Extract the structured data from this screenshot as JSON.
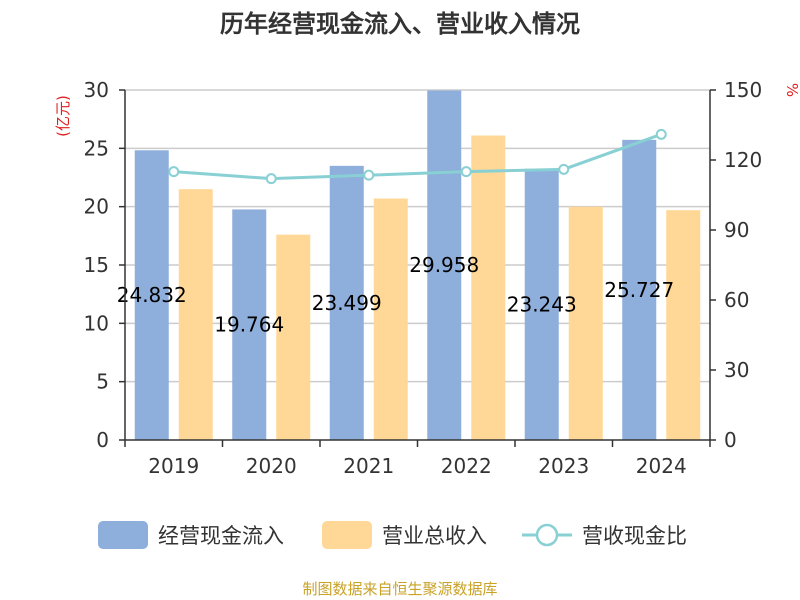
{
  "chart_data": {
    "type": "bar",
    "title": "历年经营现金流入、营业收入情况",
    "categories": [
      "2019",
      "2020",
      "2021",
      "2022",
      "2023",
      "2024"
    ],
    "series": [
      {
        "name": "经营现金流入",
        "type": "bar",
        "axis": "left",
        "color": "#8eaedb",
        "values": [
          24.832,
          19.764,
          23.499,
          29.958,
          23.243,
          25.727
        ]
      },
      {
        "name": "营业总收入",
        "type": "bar",
        "axis": "left",
        "color": "#ffd898",
        "values": [
          21.5,
          17.6,
          20.7,
          26.1,
          20.0,
          19.7
        ]
      },
      {
        "name": "营收现金比",
        "type": "line",
        "axis": "right",
        "color": "#88d0d4",
        "values": [
          115,
          112,
          113.5,
          115,
          116,
          131
        ]
      }
    ],
    "data_labels": [
      "24.832",
      "19.764",
      "23.499",
      "29.958",
      "23.243",
      "25.727"
    ],
    "y_left": {
      "unit": "(亿元)",
      "range": [
        0,
        30
      ],
      "ticks": [
        "0",
        "5",
        "10",
        "15",
        "20",
        "25",
        "30"
      ]
    },
    "y_right": {
      "unit": "%",
      "range": [
        0,
        150
      ],
      "ticks": [
        "0",
        "30",
        "60",
        "90",
        "120",
        "150"
      ]
    },
    "grid": true,
    "legend": "bottom",
    "source": "制图数据来自恒生聚源数据库"
  }
}
